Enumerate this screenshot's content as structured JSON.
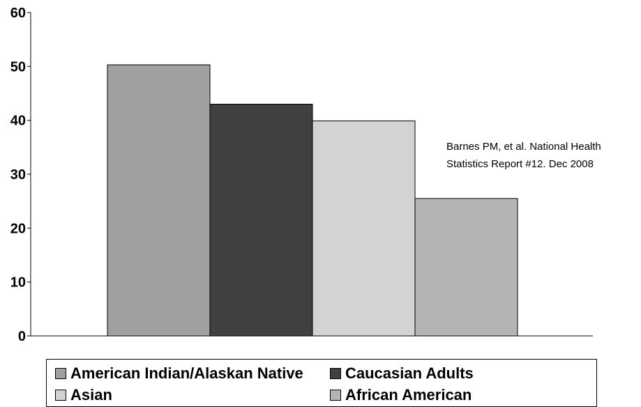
{
  "chart_data": {
    "type": "bar",
    "categories": [
      "American Indian/Alaskan Native",
      "Caucasian Adults",
      "Asian",
      "African American"
    ],
    "values": [
      50.3,
      43.0,
      39.9,
      25.5
    ],
    "colors": [
      "#a0a0a0",
      "#404040",
      "#d3d3d3",
      "#b4b4b4"
    ],
    "ylim": [
      0,
      60
    ],
    "yticks": [
      0,
      10,
      20,
      30,
      40,
      50,
      60
    ],
    "title": "",
    "xlabel": "",
    "ylabel": "",
    "grid": false,
    "legend_placement": "bottom",
    "annotation": [
      "Barnes PM, et al. National Health",
      "Statistics Report #12. Dec 2008"
    ]
  }
}
